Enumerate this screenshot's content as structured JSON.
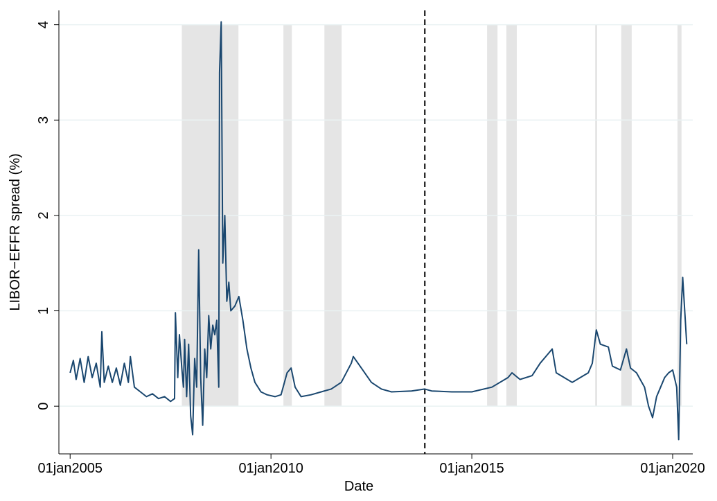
{
  "chart_data": {
    "type": "line",
    "xlabel": "Date",
    "ylabel": "LIBOR−EFFR spread (%)",
    "xlim": [
      2004.72,
      2020.5
    ],
    "ylim": [
      -0.5,
      4.15
    ],
    "xticks": [
      {
        "value": 2005,
        "label": "01jan2005"
      },
      {
        "value": 2010,
        "label": "01jan2010"
      },
      {
        "value": 2015,
        "label": "01jan2015"
      },
      {
        "value": 2020,
        "label": "01jan2020"
      }
    ],
    "yticks": [
      0,
      1,
      2,
      3,
      4
    ],
    "grid": true,
    "vline": 2013.83,
    "shaded_regions": [
      {
        "x": [
          2007.78,
          2009.19
        ],
        "y": [
          0,
          4
        ]
      },
      {
        "x": [
          2010.31,
          2010.52
        ],
        "y": [
          0,
          4
        ]
      },
      {
        "x": [
          2011.33,
          2011.76
        ],
        "y": [
          0,
          4
        ]
      },
      {
        "x": [
          2015.38,
          2015.64
        ],
        "y": [
          0,
          4
        ]
      },
      {
        "x": [
          2015.86,
          2016.12
        ],
        "y": [
          0,
          4
        ]
      },
      {
        "x": [
          2018.07,
          2018.12
        ],
        "y": [
          0,
          4
        ]
      },
      {
        "x": [
          2018.72,
          2018.98
        ],
        "y": [
          0,
          4
        ]
      },
      {
        "x": [
          2020.12,
          2020.22
        ],
        "y": [
          0,
          4
        ]
      }
    ],
    "series": [
      {
        "color": "#1a476f",
        "x": [
          2005.0,
          2005.08,
          2005.15,
          2005.25,
          2005.35,
          2005.45,
          2005.55,
          2005.65,
          2005.75,
          2005.79,
          2005.85,
          2005.95,
          2006.05,
          2006.15,
          2006.25,
          2006.35,
          2006.45,
          2006.5,
          2006.6,
          2006.75,
          2006.9,
          2007.05,
          2007.2,
          2007.35,
          2007.5,
          2007.6,
          2007.62,
          2007.68,
          2007.72,
          2007.78,
          2007.82,
          2007.85,
          2007.9,
          2007.95,
          2008.0,
          2008.05,
          2008.1,
          2008.15,
          2008.2,
          2008.25,
          2008.3,
          2008.35,
          2008.4,
          2008.45,
          2008.5,
          2008.55,
          2008.6,
          2008.65,
          2008.7,
          2008.72,
          2008.76,
          2008.8,
          2008.85,
          2008.9,
          2008.95,
          2009.0,
          2009.1,
          2009.2,
          2009.3,
          2009.4,
          2009.5,
          2009.6,
          2009.75,
          2009.9,
          2010.1,
          2010.25,
          2010.4,
          2010.5,
          2010.6,
          2010.75,
          2011.0,
          2011.25,
          2011.5,
          2011.75,
          2012.0,
          2012.05,
          2012.25,
          2012.5,
          2012.75,
          2013.0,
          2013.5,
          2013.83,
          2014.0,
          2014.5,
          2015.0,
          2015.5,
          2015.9,
          2016.0,
          2016.2,
          2016.5,
          2016.7,
          2016.9,
          2017.0,
          2017.1,
          2017.3,
          2017.5,
          2017.7,
          2017.9,
          2018.0,
          2018.1,
          2018.2,
          2018.4,
          2018.5,
          2018.7,
          2018.85,
          2018.95,
          2019.1,
          2019.3,
          2019.4,
          2019.5,
          2019.6,
          2019.7,
          2019.8,
          2019.9,
          2020.0,
          2020.1,
          2020.15,
          2020.2,
          2020.25,
          2020.3,
          2020.35
        ],
        "values": [
          0.35,
          0.48,
          0.28,
          0.5,
          0.25,
          0.52,
          0.3,
          0.45,
          0.2,
          0.78,
          0.25,
          0.42,
          0.25,
          0.4,
          0.22,
          0.45,
          0.25,
          0.52,
          0.2,
          0.15,
          0.1,
          0.13,
          0.08,
          0.1,
          0.05,
          0.08,
          0.98,
          0.3,
          0.75,
          0.4,
          0.2,
          0.7,
          0.1,
          0.65,
          -0.1,
          -0.3,
          0.5,
          0.2,
          1.64,
          0.3,
          -0.2,
          0.6,
          0.3,
          0.95,
          0.6,
          0.85,
          0.75,
          0.9,
          0.2,
          3.5,
          4.03,
          1.5,
          2.0,
          1.1,
          1.3,
          1.0,
          1.05,
          1.15,
          0.9,
          0.6,
          0.4,
          0.25,
          0.15,
          0.12,
          0.1,
          0.12,
          0.35,
          0.4,
          0.2,
          0.1,
          0.12,
          0.15,
          0.18,
          0.25,
          0.45,
          0.52,
          0.4,
          0.25,
          0.18,
          0.15,
          0.16,
          0.18,
          0.16,
          0.15,
          0.15,
          0.2,
          0.3,
          0.35,
          0.28,
          0.32,
          0.45,
          0.55,
          0.6,
          0.35,
          0.3,
          0.25,
          0.3,
          0.35,
          0.45,
          0.8,
          0.65,
          0.62,
          0.42,
          0.38,
          0.6,
          0.4,
          0.35,
          0.2,
          0.0,
          -0.12,
          0.1,
          0.2,
          0.3,
          0.35,
          0.38,
          0.2,
          -0.35,
          0.9,
          1.35,
          1.0,
          0.65
        ]
      }
    ]
  }
}
